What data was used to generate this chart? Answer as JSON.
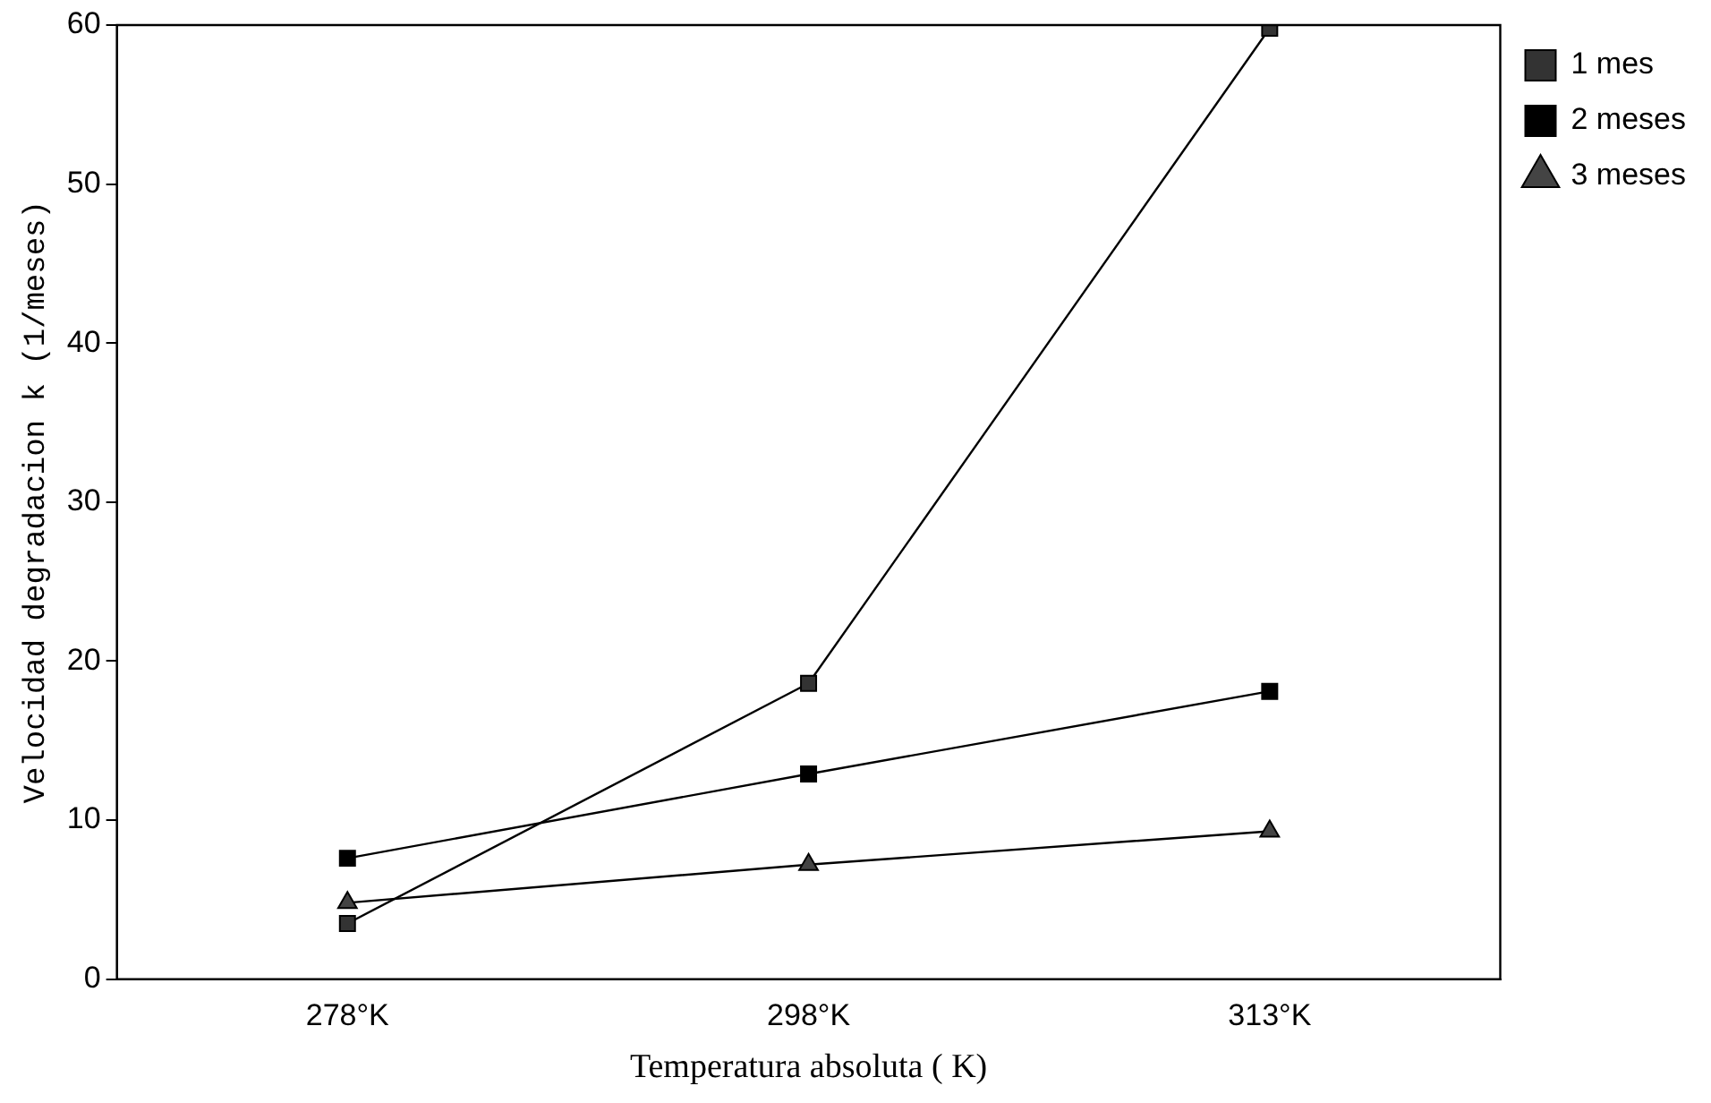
{
  "chart_data": {
    "type": "line",
    "xlabel": "Temperatura absoluta ( K)",
    "ylabel": "Velocidad degradacion k (1/meses)",
    "categories": [
      "278°K",
      "298°K",
      "313°K"
    ],
    "series": [
      {
        "name": "1 mes",
        "color": "#333333",
        "marker": "square",
        "values": [
          3.5,
          18.6,
          59.8
        ]
      },
      {
        "name": "2 meses",
        "color": "#000000",
        "marker": "square",
        "values": [
          7.6,
          12.9,
          18.1
        ]
      },
      {
        "name": "3 meses",
        "color": "#444444",
        "marker": "triangle",
        "values": [
          4.8,
          7.2,
          9.3
        ]
      }
    ],
    "ylim": [
      0,
      60
    ],
    "yticks": [
      0,
      10,
      20,
      30,
      40,
      50,
      60
    ],
    "grid": false,
    "legend": "top right",
    "line_style": "solid"
  }
}
